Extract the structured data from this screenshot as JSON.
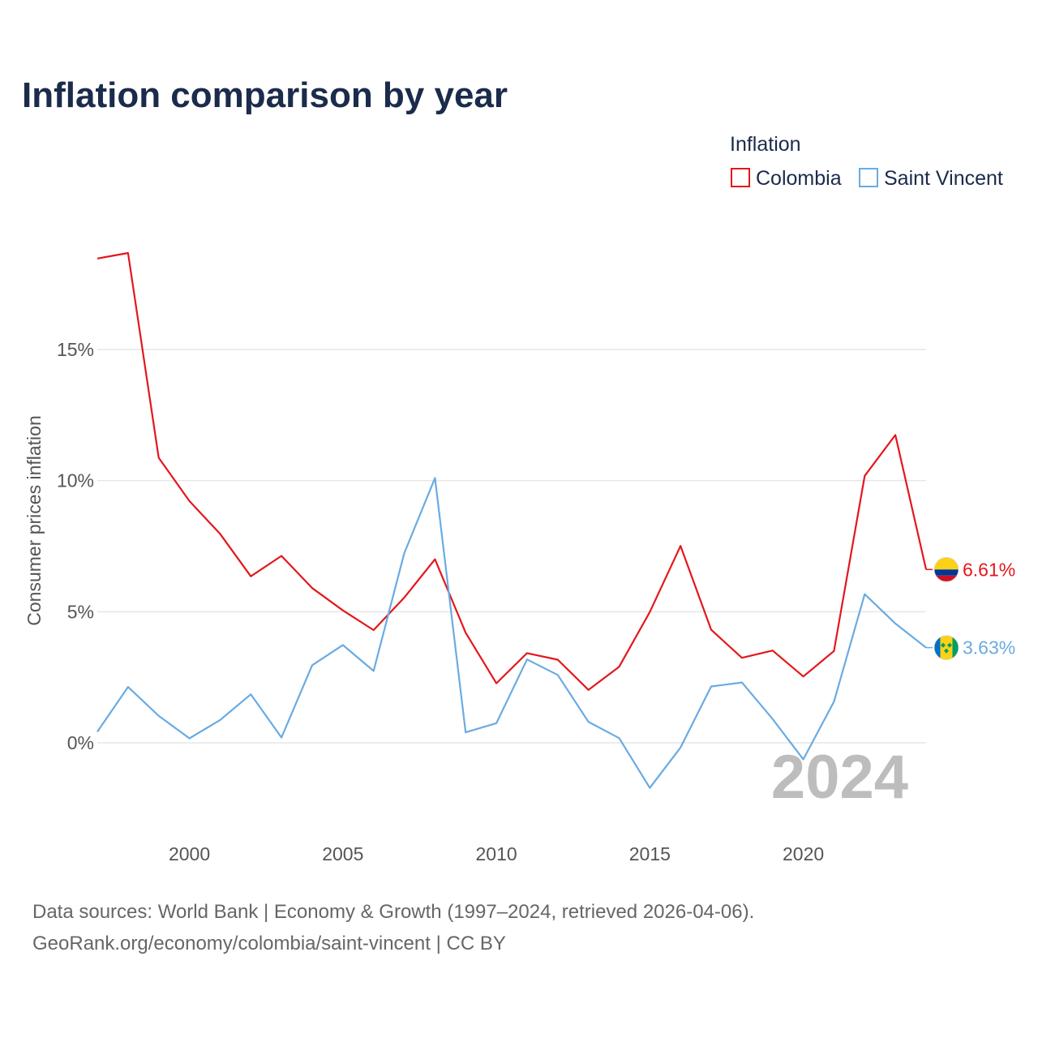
{
  "chart_data": {
    "type": "line",
    "title": "Inflation comparison by year",
    "legend": {
      "title": "Inflation",
      "placement": "top-right"
    },
    "ylabel": "Consumer prices inflation",
    "xlabel": "",
    "x": [
      1997,
      1998,
      1999,
      2000,
      2001,
      2002,
      2003,
      2004,
      2005,
      2006,
      2007,
      2008,
      2009,
      2010,
      2011,
      2012,
      2013,
      2014,
      2015,
      2016,
      2017,
      2018,
      2019,
      2020,
      2021,
      2022,
      2023,
      2024
    ],
    "xlim": [
      1997,
      2024
    ],
    "ylim": [
      -3.5,
      19.5
    ],
    "xticks": [
      2000,
      2005,
      2010,
      2015,
      2020
    ],
    "xtick_labels": [
      "2000",
      "2005",
      "2010",
      "2015",
      "2020"
    ],
    "yticks": [
      0,
      5,
      10,
      15
    ],
    "ytick_labels": [
      "0%",
      "5%",
      "10%",
      "15%"
    ],
    "grid": true,
    "series": [
      {
        "name": "Colombia",
        "color": "#e3171c",
        "end_label": "6.61%",
        "values": [
          18.47,
          18.68,
          10.87,
          9.22,
          7.97,
          6.35,
          7.13,
          5.9,
          5.05,
          4.3,
          5.54,
          7.0,
          4.2,
          2.27,
          3.42,
          3.17,
          2.02,
          2.9,
          4.99,
          7.51,
          4.31,
          3.24,
          3.52,
          2.53,
          3.5,
          10.18,
          11.74,
          6.61
        ],
        "flag_icon": "colombia-flag-icon",
        "flag_colors": [
          "#fcd116",
          "#003893",
          "#ce1126"
        ]
      },
      {
        "name": "Saint Vincent",
        "color": "#6aabe2",
        "end_label": "3.63%",
        "values": [
          0.42,
          2.13,
          1.03,
          0.17,
          0.87,
          1.85,
          0.2,
          2.96,
          3.73,
          2.74,
          7.23,
          10.1,
          0.4,
          0.75,
          3.18,
          2.59,
          0.8,
          0.18,
          -1.72,
          -0.18,
          2.15,
          2.3,
          0.91,
          -0.63,
          1.57,
          5.67,
          4.55,
          3.63
        ],
        "flag_icon": "saint-vincent-flag-icon",
        "flag_colors": [
          "#0072c6",
          "#fcd116",
          "#009e60"
        ]
      }
    ],
    "annotation": "2024"
  },
  "footer": {
    "source_line1": "Data sources: World Bank | Economy & Growth (1997–2024, retrieved 2026-04-06).",
    "source_line2": "GeoRank.org/economy/colombia/saint-vincent | CC BY"
  }
}
